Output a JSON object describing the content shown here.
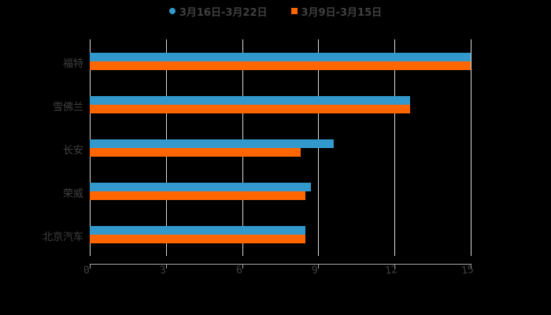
{
  "colors": {
    "series1": "#3399CC",
    "series2": "#FF6600",
    "background": "#000000",
    "grid": "#D9D9D9",
    "text": "#404040"
  },
  "legend": [
    {
      "label": "3月16日-3月22日",
      "marker": "circle",
      "color": "#3399CC"
    },
    {
      "label": "3月9日-3月15日",
      "marker": "square",
      "color": "#FF6600"
    }
  ],
  "axis": {
    "ticks": [
      "0",
      "3",
      "6",
      "9",
      "12",
      "15"
    ]
  },
  "chart_data": {
    "type": "bar",
    "orientation": "horizontal",
    "title": "",
    "xlabel": "",
    "ylabel": "",
    "categories": [
      "福特",
      "雪佛兰",
      "长安",
      "荣威",
      "北京汽车"
    ],
    "series": [
      {
        "name": "3月16日-3月22日",
        "color": "#3399CC",
        "values": [
          15.0,
          12.6,
          9.6,
          8.7,
          8.5
        ]
      },
      {
        "name": "3月9日-3月15日",
        "color": "#FF6600",
        "values": [
          15.0,
          12.6,
          8.3,
          8.5,
          8.5
        ]
      }
    ],
    "xlim": [
      0,
      15
    ],
    "xticks": [
      0,
      3,
      6,
      9,
      12,
      15
    ],
    "grid": true,
    "legend_position": "top"
  }
}
